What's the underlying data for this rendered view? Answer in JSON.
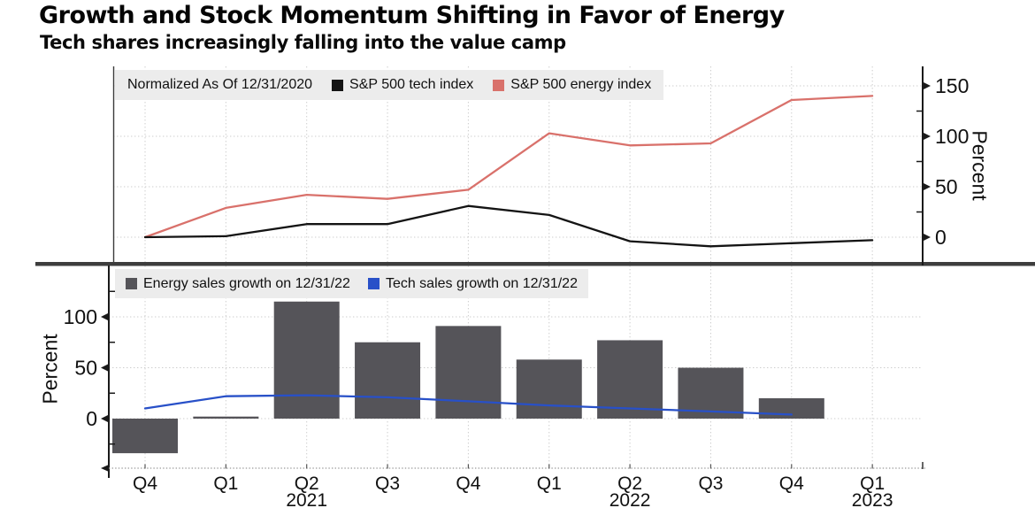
{
  "header": {
    "title": "Growth and Stock Momentum Shifting in Favor of Energy",
    "subtitle": "Tech shares increasingly falling into the value camp"
  },
  "colors": {
    "tech_index": "#141414",
    "energy_index": "#d9716b",
    "energy_bars": "#555459",
    "tech_sales_line": "#2850c8",
    "grid": "#cccccc",
    "axis": "#1a1a1a",
    "divider": "#3d3d3d",
    "legend_bg": "#ececec"
  },
  "chart_data": [
    {
      "type": "line",
      "panel": "top",
      "note": "Normalized As Of 12/31/2020",
      "categories": [
        "Q4 2020",
        "Q1 2021",
        "Q2 2021",
        "Q3 2021",
        "Q4 2021",
        "Q1 2022",
        "Q2 2022",
        "Q3 2022",
        "Q4 2022",
        "Q1 2023"
      ],
      "series": [
        {
          "name": "S&P 500 tech index",
          "color_key": "tech_index",
          "values": [
            0,
            1,
            13,
            13,
            31,
            22,
            -4,
            -9,
            -6,
            -3
          ]
        },
        {
          "name": "S&P 500 energy index",
          "color_key": "energy_index",
          "values": [
            0,
            29,
            42,
            38,
            47,
            103,
            91,
            93,
            136,
            140
          ]
        }
      ],
      "ylabel": "Percent",
      "y_axis_side": "right",
      "yticks": [
        0,
        50,
        100,
        150
      ],
      "yticks_minor": [
        25,
        75,
        125
      ],
      "ylim": [
        -25,
        169
      ],
      "grid": "dotted",
      "legend_position": "top-left"
    },
    {
      "type": "bar+line",
      "panel": "bottom",
      "categories": [
        "Q4 2020",
        "Q1 2021",
        "Q2 2021",
        "Q3 2021",
        "Q4 2021",
        "Q1 2022",
        "Q2 2022",
        "Q3 2022",
        "Q4 2022",
        "Q1 2023"
      ],
      "series": [
        {
          "name": "Energy sales growth on 12/31/22",
          "type": "bar",
          "color_key": "energy_bars",
          "values": [
            -34,
            2,
            115,
            75,
            91,
            58,
            77,
            50,
            20,
            null
          ]
        },
        {
          "name": "Tech sales growth on 12/31/22",
          "type": "line",
          "color_key": "tech_sales_line",
          "values": [
            10,
            22,
            23,
            21,
            17,
            13,
            10,
            7,
            4,
            null
          ]
        }
      ],
      "ylabel": "Percent",
      "y_axis_side": "left",
      "yticks": [
        0,
        50,
        100
      ],
      "yticks_minor": [
        -25,
        25,
        75,
        125
      ],
      "ylim": [
        -48,
        146
      ],
      "grid": "dotted",
      "legend_position": "top-left",
      "x_tick_labels": [
        "Q4",
        "Q1",
        "Q2",
        "Q3",
        "Q4",
        "Q1",
        "Q2",
        "Q3",
        "Q4",
        "Q1"
      ],
      "year_labels": [
        {
          "text": "2021",
          "index": 2
        },
        {
          "text": "2022",
          "index": 6
        },
        {
          "text": "2023",
          "index": 9
        }
      ]
    }
  ]
}
